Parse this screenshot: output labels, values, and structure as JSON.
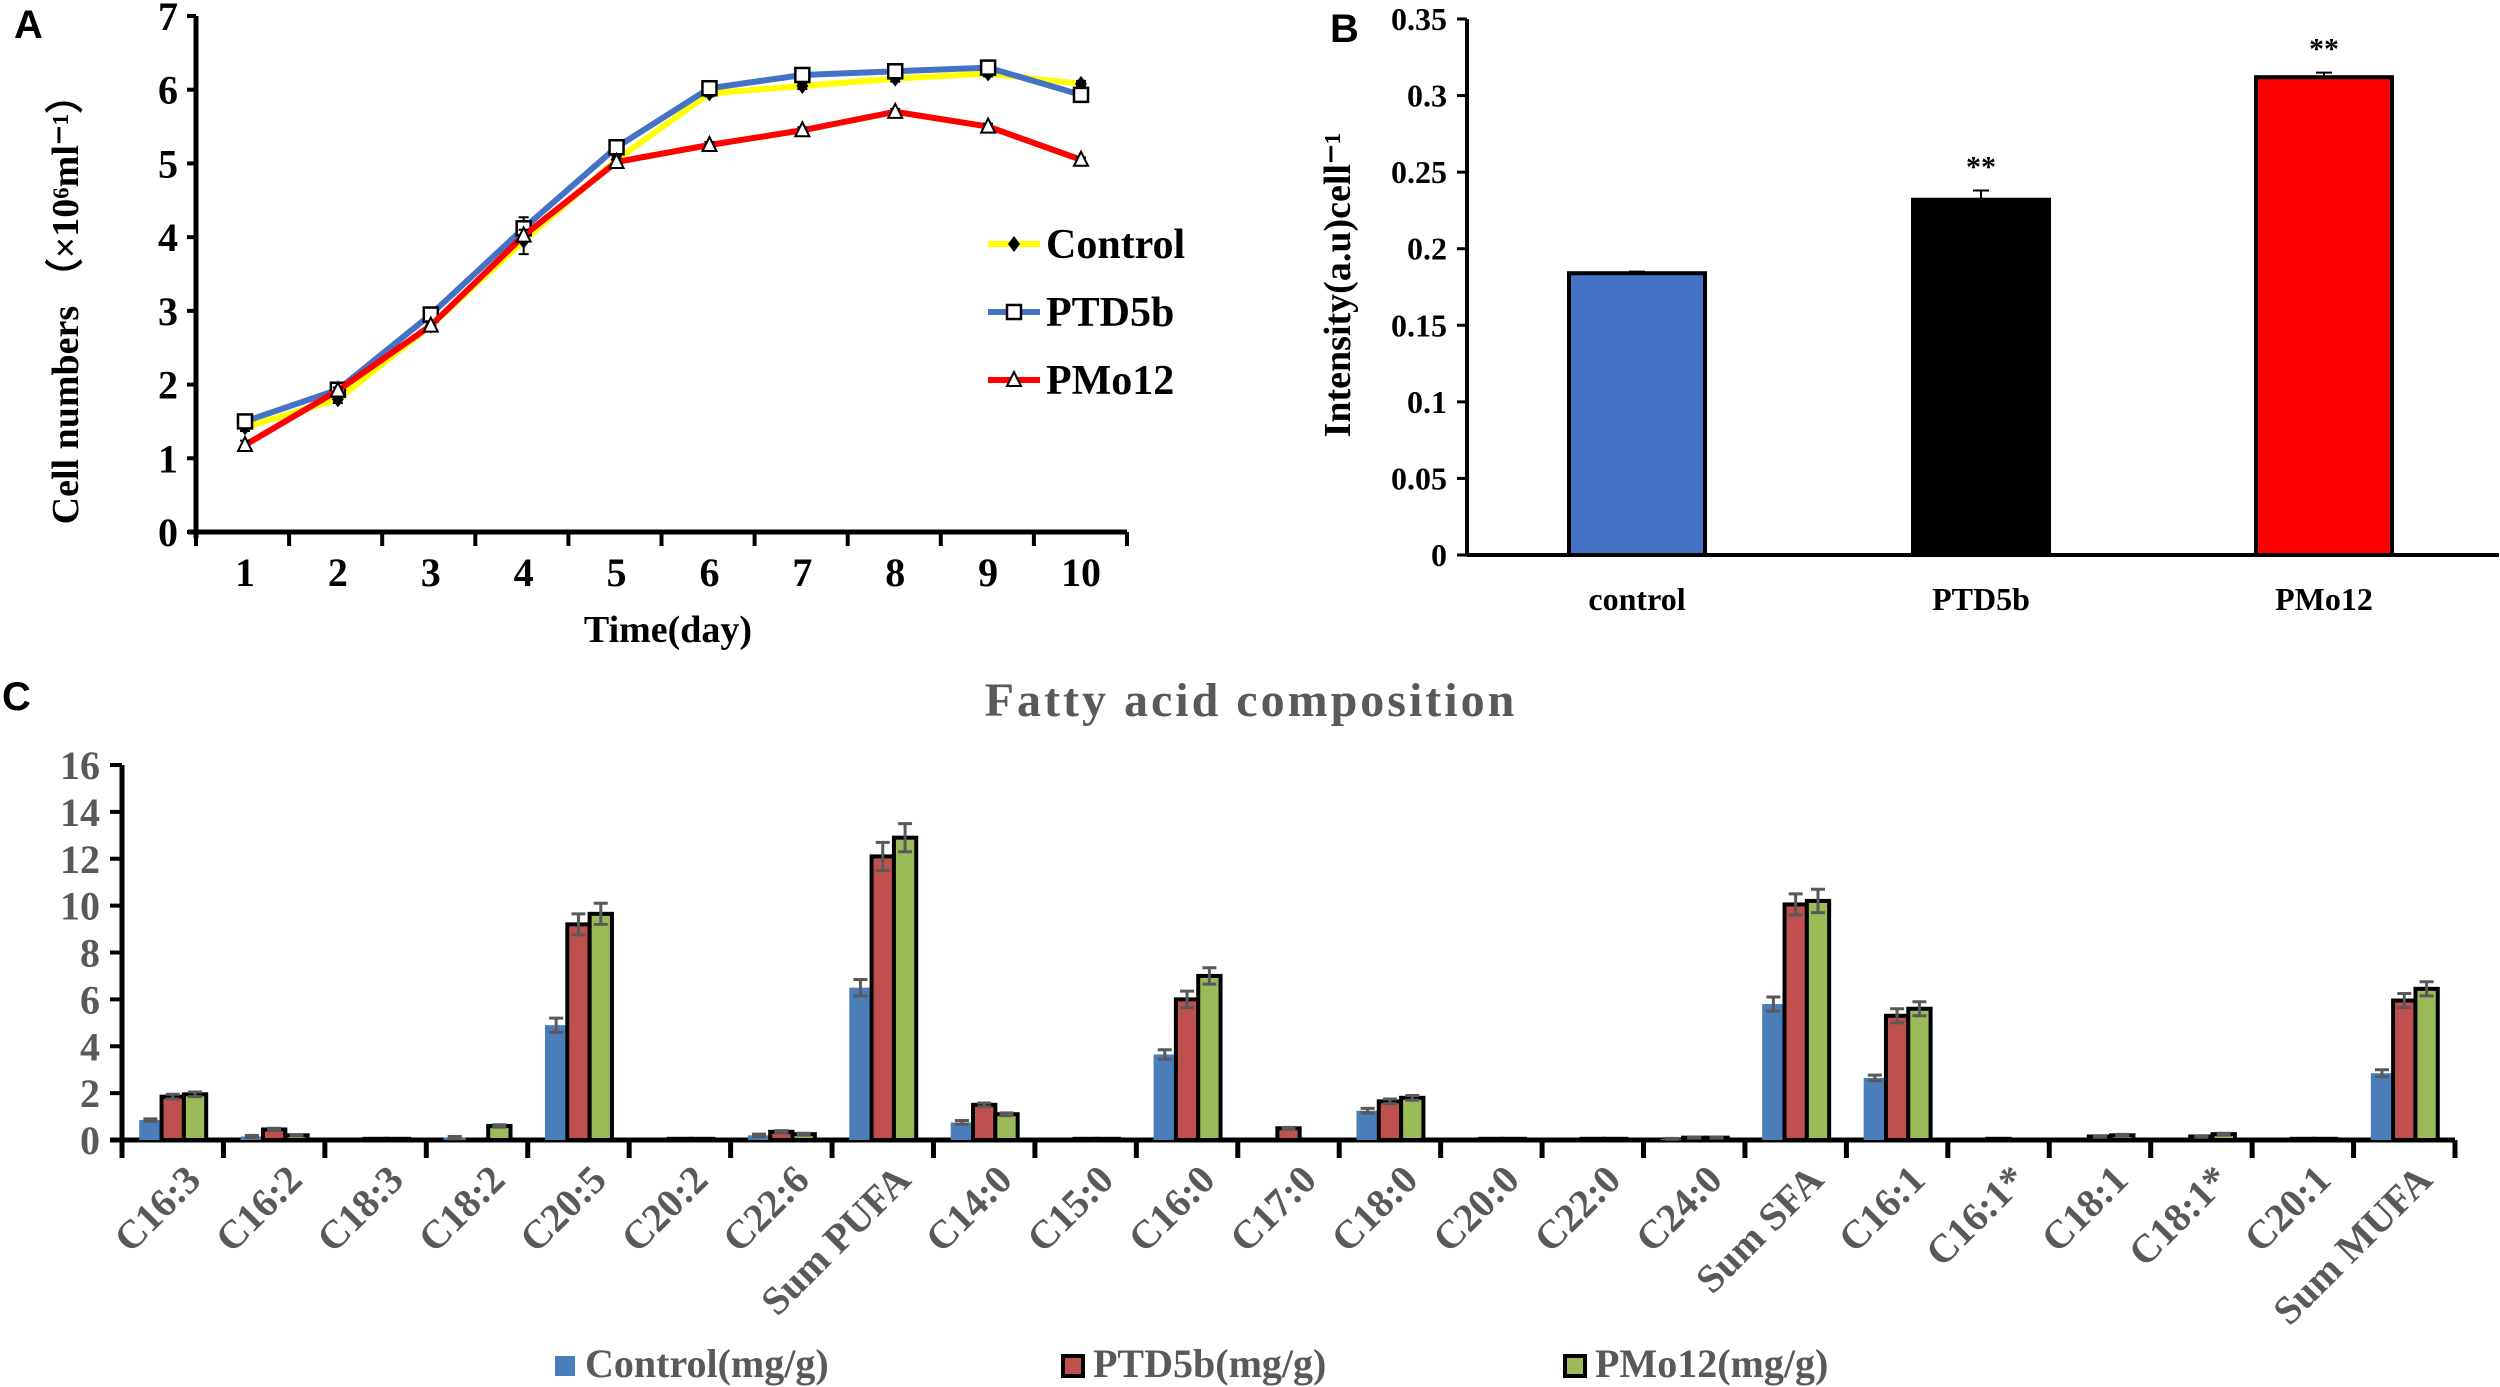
{
  "panel_labels": [
    "A",
    "B",
    "C"
  ],
  "chart_data": [
    {
      "type": "line",
      "panel": "A",
      "xlabel": "Time(day)",
      "ylabel": "Cell numbers （×10⁶ml⁻¹）",
      "x": [
        1,
        2,
        3,
        4,
        5,
        6,
        7,
        8,
        9,
        10
      ],
      "ylim": [
        0,
        7
      ],
      "yticks": [
        0,
        1,
        2,
        3,
        4,
        5,
        6,
        7
      ],
      "legend_position": "right",
      "series": [
        {
          "name": "Control",
          "color": "#ffff00",
          "marker": "diamond",
          "values": [
            1.42,
            1.8,
            2.8,
            3.95,
            5.05,
            5.95,
            6.05,
            6.15,
            6.22,
            6.08
          ],
          "errors": [
            0.05,
            0.05,
            0.05,
            0.18,
            0.05,
            0.04,
            0.04,
            0.04,
            0.04,
            0.04
          ]
        },
        {
          "name": "PTD5b",
          "color": "#4472c4",
          "marker": "square",
          "values": [
            1.5,
            1.93,
            2.95,
            4.12,
            5.22,
            6.02,
            6.2,
            6.25,
            6.3,
            5.93
          ],
          "errors": [
            0.04,
            0.04,
            0.04,
            0.15,
            0.06,
            0.04,
            0.04,
            0.04,
            0.03,
            0.06
          ]
        },
        {
          "name": "PMo12",
          "color": "#ff0000",
          "marker": "triangle",
          "values": [
            1.18,
            1.92,
            2.8,
            4.02,
            5.02,
            5.25,
            5.45,
            5.7,
            5.5,
            5.05
          ],
          "errors": [
            0.06,
            0.04,
            0.04,
            0.08,
            0.05,
            0.04,
            0.04,
            0.04,
            0.04,
            0.03
          ]
        }
      ]
    },
    {
      "type": "bar",
      "panel": "B",
      "ylabel": "Intensity(a.u)cell⁻¹",
      "categories": [
        "control",
        "PTD5b",
        "PMo12"
      ],
      "values": [
        0.184,
        0.232,
        0.312
      ],
      "errors": [
        0.001,
        0.006,
        0.003
      ],
      "colors": [
        "#4472c4",
        "#000000",
        "#ff0000"
      ],
      "annotations": [
        "",
        "**",
        "**"
      ],
      "ylim": [
        0,
        0.35
      ],
      "yticks": [
        "0",
        "0.05",
        "0.1",
        "0.15",
        "0.2",
        "0.25",
        "0.3",
        "0.35"
      ]
    },
    {
      "type": "bar",
      "panel": "C",
      "title": "Fatty acid composition",
      "ylim": [
        0,
        16
      ],
      "yticks": [
        0,
        2,
        4,
        6,
        8,
        10,
        12,
        14,
        16
      ],
      "legend_position": "bottom",
      "categories": [
        "C16:3",
        "C16:2",
        "C18:3",
        "C18:2",
        "C20:5",
        "C20:2",
        "C22:6",
        "Sum PUFA",
        "C14:0",
        "C15:0",
        "C16:0",
        "C17:0",
        "C18:0",
        "C20:0",
        "C22:0",
        "C24:0",
        "Sum SFA",
        "C16:1",
        "C16:1*",
        "C18:1",
        "C18:1*",
        "C20:1",
        "Sum MUFA"
      ],
      "series": [
        {
          "name": "Control(mg/g)",
          "color": "#4a7ebb",
          "values": [
            0.85,
            0.15,
            0,
            0.1,
            4.9,
            0,
            0.2,
            6.5,
            0.75,
            0,
            3.65,
            0,
            1.25,
            0,
            0,
            0.05,
            5.8,
            2.65,
            0,
            0,
            0,
            0,
            2.85
          ],
          "errors": [
            0.05,
            0.05,
            0,
            0.05,
            0.3,
            0,
            0.05,
            0.35,
            0.08,
            0,
            0.2,
            0,
            0.1,
            0,
            0,
            0.02,
            0.3,
            0.12,
            0,
            0,
            0,
            0,
            0.15
          ]
        },
        {
          "name": "PTD5b(mg/g)",
          "color": "#c0504d",
          "values": [
            1.85,
            0.45,
            0.05,
            0,
            9.2,
            0.05,
            0.35,
            12.1,
            1.5,
            0.05,
            6.0,
            0.5,
            1.65,
            0.05,
            0.05,
            0.1,
            10.05,
            5.3,
            0.05,
            0.15,
            0.15,
            0.05,
            5.95
          ],
          "errors": [
            0.1,
            0.05,
            0,
            0,
            0.45,
            0,
            0.05,
            0.6,
            0.08,
            0,
            0.35,
            0.04,
            0.1,
            0,
            0,
            0.02,
            0.45,
            0.3,
            0,
            0.03,
            0.03,
            0,
            0.3
          ]
        },
        {
          "name": "PMo12(mg/g)",
          "color": "#9bbb59",
          "values": [
            1.95,
            0.2,
            0.05,
            0.6,
            9.65,
            0.05,
            0.25,
            12.9,
            1.1,
            0.05,
            7.0,
            0,
            1.8,
            0.05,
            0.05,
            0.1,
            10.2,
            5.6,
            0.02,
            0.2,
            0.25,
            0.05,
            6.45
          ],
          "errors": [
            0.1,
            0.03,
            0,
            0.05,
            0.45,
            0,
            0.04,
            0.6,
            0.06,
            0,
            0.35,
            0,
            0.1,
            0,
            0,
            0.02,
            0.5,
            0.3,
            0,
            0.04,
            0.04,
            0,
            0.3
          ]
        }
      ]
    }
  ]
}
